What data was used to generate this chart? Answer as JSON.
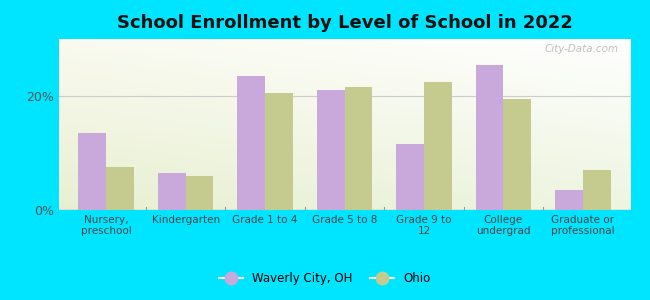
{
  "title": "School Enrollment by Level of School in 2022",
  "categories": [
    "Nursery,\npreschool",
    "Kindergarten",
    "Grade 1 to 4",
    "Grade 5 to 8",
    "Grade 9 to\n12",
    "College\nundergrad",
    "Graduate or\nprofessional"
  ],
  "waverly_values": [
    13.5,
    6.5,
    23.5,
    21.0,
    11.5,
    25.5,
    3.5
  ],
  "ohio_values": [
    7.5,
    6.0,
    20.5,
    21.5,
    22.5,
    19.5,
    7.0
  ],
  "waverly_color": "#c9a8dc",
  "ohio_color": "#c5cb8e",
  "background_color": "#00e5ff",
  "yticks": [
    0,
    20
  ],
  "ylabel_ticks": [
    "0%",
    "20%"
  ],
  "ylim": [
    0,
    30
  ],
  "bar_width": 0.35,
  "legend_waverly": "Waverly City, OH",
  "legend_ohio": "Ohio",
  "watermark": "City-Data.com",
  "title_fontsize": 13,
  "tick_fontsize": 7.5,
  "ytick_fontsize": 9
}
